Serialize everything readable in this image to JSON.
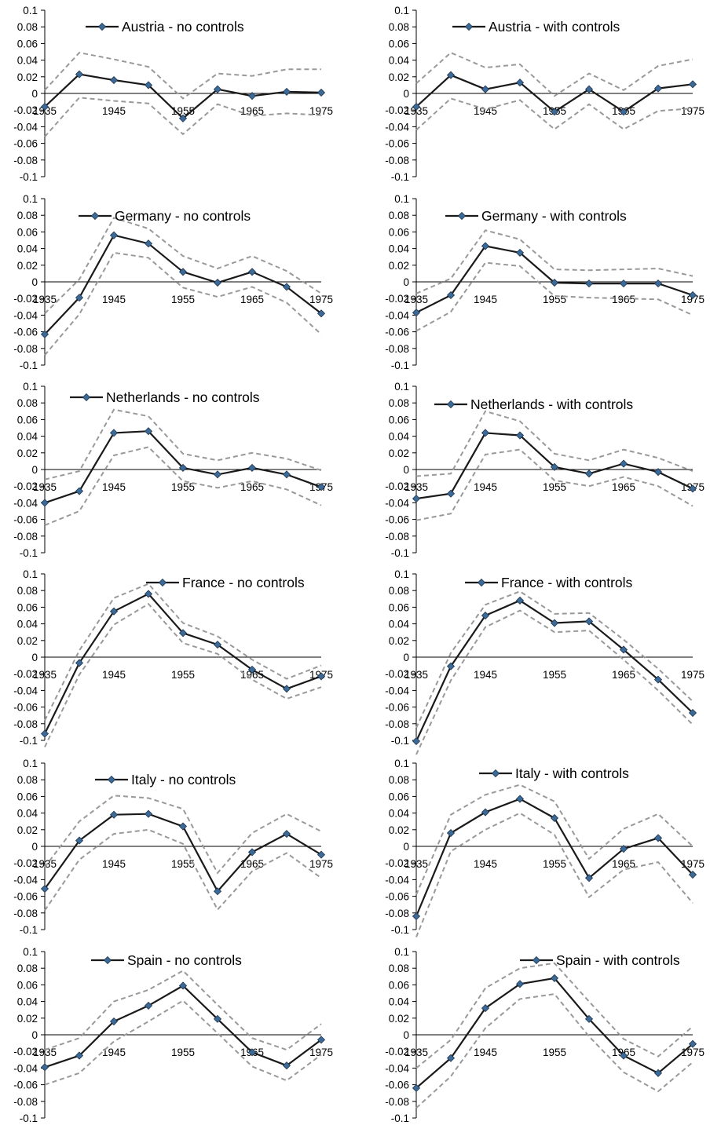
{
  "chart_data": [
    {
      "type": "line",
      "legend": "Austria - no controls",
      "x": [
        1935,
        1940,
        1945,
        1950,
        1955,
        1960,
        1965,
        1970,
        1975
      ],
      "x_tick_labels": [
        "1935",
        "1945",
        "1955",
        "1965",
        "1975"
      ],
      "y_tick_labels": [
        "0.1",
        "0.08",
        "0.06",
        "0.04",
        "0.02",
        "0",
        "-0.02",
        "-0.04",
        "-0.06",
        "-0.08",
        "-0.1"
      ],
      "ylim": [
        -0.1,
        0.1
      ],
      "values": [
        -0.016,
        0.023,
        0.016,
        0.01,
        -0.03,
        0.005,
        -0.003,
        0.002,
        0.001
      ],
      "upper": [
        0.004,
        0.049,
        0.041,
        0.032,
        -0.006,
        0.024,
        0.021,
        0.029,
        0.029
      ],
      "lower": [
        -0.052,
        -0.005,
        -0.009,
        -0.012,
        -0.049,
        -0.013,
        -0.027,
        -0.024,
        -0.026
      ],
      "colors": {
        "line": "#1a1a1a",
        "marker": "#3c6a96",
        "band": "#999999"
      }
    },
    {
      "type": "line",
      "legend": "Austria - with controls",
      "x": [
        1935,
        1940,
        1945,
        1950,
        1955,
        1960,
        1965,
        1970,
        1975
      ],
      "x_tick_labels": [
        "1935",
        "1945",
        "1955",
        "1965",
        "1975"
      ],
      "y_tick_labels": [
        "0.1",
        "0.08",
        "0.06",
        "0.04",
        "0.02",
        "0",
        "-0.02",
        "-0.04",
        "-0.06",
        "-0.08",
        "-0.1"
      ],
      "ylim": [
        -0.1,
        0.1
      ],
      "values": [
        -0.016,
        0.022,
        0.005,
        0.013,
        -0.022,
        0.005,
        -0.022,
        0.006,
        0.011
      ],
      "upper": [
        0.012,
        0.049,
        0.031,
        0.035,
        -0.003,
        0.024,
        0.004,
        0.033,
        0.041
      ],
      "lower": [
        -0.044,
        -0.006,
        -0.019,
        -0.008,
        -0.043,
        -0.013,
        -0.043,
        -0.021,
        -0.018
      ],
      "colors": {
        "line": "#1a1a1a",
        "marker": "#3c6a96",
        "band": "#999999"
      }
    },
    {
      "type": "line",
      "legend": "Germany - no controls",
      "x": [
        1935,
        1940,
        1945,
        1950,
        1955,
        1960,
        1965,
        1970,
        1975
      ],
      "x_tick_labels": [
        "1935",
        "1945",
        "1955",
        "1965",
        "1975"
      ],
      "y_tick_labels": [
        "0.1",
        "0.08",
        "0.06",
        "0.04",
        "0.02",
        "0",
        "-0.02",
        "-0.04",
        "-0.06",
        "-0.08",
        "-0.1"
      ],
      "ylim": [
        -0.1,
        0.1
      ],
      "values": [
        -0.063,
        -0.019,
        0.056,
        0.046,
        0.012,
        -0.001,
        0.012,
        -0.006,
        -0.038
      ],
      "upper": [
        -0.038,
        0.003,
        0.077,
        0.064,
        0.031,
        0.016,
        0.031,
        0.013,
        -0.014
      ],
      "lower": [
        -0.088,
        -0.039,
        0.035,
        0.029,
        -0.007,
        -0.018,
        -0.006,
        -0.025,
        -0.063
      ],
      "colors": {
        "line": "#1a1a1a",
        "marker": "#3c6a96",
        "band": "#999999"
      }
    },
    {
      "type": "line",
      "legend": "Germany - with controls",
      "x": [
        1935,
        1940,
        1945,
        1950,
        1955,
        1960,
        1965,
        1970,
        1975
      ],
      "x_tick_labels": [
        "1935",
        "1945",
        "1955",
        "1965",
        "1975"
      ],
      "y_tick_labels": [
        "0.1",
        "0.08",
        "0.06",
        "0.04",
        "0.02",
        "0",
        "-0.02",
        "-0.04",
        "-0.06",
        "-0.08",
        "-0.1"
      ],
      "ylim": [
        -0.1,
        0.1
      ],
      "values": [
        -0.037,
        -0.016,
        0.043,
        0.035,
        -0.001,
        -0.002,
        -0.002,
        -0.002,
        -0.016
      ],
      "upper": [
        -0.014,
        0.004,
        0.062,
        0.051,
        0.015,
        0.014,
        0.015,
        0.016,
        0.007
      ],
      "lower": [
        -0.059,
        -0.036,
        0.023,
        0.019,
        -0.017,
        -0.019,
        -0.02,
        -0.021,
        -0.04
      ],
      "colors": {
        "line": "#1a1a1a",
        "marker": "#3c6a96",
        "band": "#999999"
      }
    },
    {
      "type": "line",
      "legend": "Netherlands - no controls",
      "x": [
        1935,
        1940,
        1945,
        1950,
        1955,
        1960,
        1965,
        1970,
        1975
      ],
      "x_tick_labels": [
        "1935",
        "1945",
        "1955",
        "1965",
        "1975"
      ],
      "y_tick_labels": [
        "0.1",
        "0.08",
        "0.06",
        "0.04",
        "0.02",
        "0",
        "-0.02",
        "-0.04",
        "-0.06",
        "-0.08",
        "-0.1"
      ],
      "ylim": [
        -0.1,
        0.1
      ],
      "values": [
        -0.04,
        -0.026,
        0.044,
        0.046,
        0.002,
        -0.006,
        0.002,
        -0.006,
        -0.021
      ],
      "upper": [
        -0.012,
        -0.002,
        0.072,
        0.064,
        0.019,
        0.011,
        0.02,
        0.013,
        -0.001
      ],
      "lower": [
        -0.067,
        -0.05,
        0.017,
        0.027,
        -0.014,
        -0.022,
        -0.014,
        -0.024,
        -0.043
      ],
      "colors": {
        "line": "#1a1a1a",
        "marker": "#3c6a96",
        "band": "#999999"
      }
    },
    {
      "type": "line",
      "legend": "Netherlands - with controls",
      "x": [
        1935,
        1940,
        1945,
        1950,
        1955,
        1960,
        1965,
        1970,
        1975
      ],
      "x_tick_labels": [
        "1935",
        "1945",
        "1955",
        "1965",
        "1975"
      ],
      "y_tick_labels": [
        "0.1",
        "0.08",
        "0.06",
        "0.04",
        "0.02",
        "0",
        "-0.02",
        "-0.04",
        "-0.06",
        "-0.08",
        "-0.1"
      ],
      "ylim": [
        -0.1,
        0.1
      ],
      "values": [
        -0.035,
        -0.029,
        0.044,
        0.041,
        0.003,
        -0.005,
        0.007,
        -0.003,
        -0.023
      ],
      "upper": [
        -0.008,
        -0.005,
        0.07,
        0.058,
        0.019,
        0.011,
        0.024,
        0.014,
        -0.002
      ],
      "lower": [
        -0.061,
        -0.053,
        0.018,
        0.024,
        -0.013,
        -0.02,
        -0.009,
        -0.02,
        -0.044
      ],
      "colors": {
        "line": "#1a1a1a",
        "marker": "#3c6a96",
        "band": "#999999"
      }
    },
    {
      "type": "line",
      "legend": "France - no controls",
      "x": [
        1935,
        1940,
        1945,
        1950,
        1955,
        1960,
        1965,
        1970,
        1975
      ],
      "x_tick_labels": [
        "1935",
        "1945",
        "1955",
        "1965",
        "1975"
      ],
      "y_tick_labels": [
        "0.1",
        "0.08",
        "0.06",
        "0.04",
        "0.02",
        "0",
        "-0.02",
        "-0.04",
        "-0.06",
        "-0.08",
        "-0.1"
      ],
      "ylim": [
        -0.1,
        0.1
      ],
      "values": [
        -0.092,
        -0.007,
        0.055,
        0.076,
        0.029,
        0.015,
        -0.015,
        -0.038,
        -0.023
      ],
      "upper": [
        -0.076,
        0.008,
        0.071,
        0.088,
        0.041,
        0.025,
        -0.003,
        -0.026,
        -0.01
      ],
      "lower": [
        -0.108,
        -0.021,
        0.039,
        0.064,
        0.017,
        0.004,
        -0.027,
        -0.05,
        -0.036
      ],
      "colors": {
        "line": "#1a1a1a",
        "marker": "#3c6a96",
        "band": "#999999"
      }
    },
    {
      "type": "line",
      "legend": "France - with controls",
      "x": [
        1935,
        1940,
        1945,
        1950,
        1955,
        1960,
        1965,
        1970,
        1975
      ],
      "x_tick_labels": [
        "1935",
        "1945",
        "1955",
        "1965",
        "1975"
      ],
      "y_tick_labels": [
        "0.1",
        "0.08",
        "0.06",
        "0.04",
        "0.02",
        "0",
        "-0.02",
        "-0.04",
        "-0.06",
        "-0.08",
        "-0.1"
      ],
      "ylim": [
        -0.1,
        0.1
      ],
      "values": [
        -0.101,
        -0.011,
        0.05,
        0.068,
        0.041,
        0.043,
        0.009,
        -0.027,
        -0.067
      ],
      "upper": [
        -0.085,
        0.005,
        0.063,
        0.079,
        0.052,
        0.053,
        0.021,
        -0.014,
        -0.053
      ],
      "lower": [
        -0.117,
        -0.028,
        0.036,
        0.056,
        0.03,
        0.032,
        -0.003,
        -0.04,
        -0.081
      ],
      "colors": {
        "line": "#1a1a1a",
        "marker": "#3c6a96",
        "band": "#999999"
      }
    },
    {
      "type": "line",
      "legend": "Italy - no controls",
      "x": [
        1935,
        1940,
        1945,
        1950,
        1955,
        1960,
        1965,
        1970,
        1975
      ],
      "x_tick_labels": [
        "1935",
        "1945",
        "1955",
        "1965",
        "1975"
      ],
      "y_tick_labels": [
        "0.1",
        "0.08",
        "0.06",
        "0.04",
        "0.02",
        "0",
        "-0.02",
        "-0.04",
        "-0.06",
        "-0.08",
        "-0.1"
      ],
      "ylim": [
        -0.1,
        0.1
      ],
      "values": [
        -0.051,
        0.007,
        0.038,
        0.039,
        0.024,
        -0.054,
        -0.007,
        0.015,
        -0.01
      ],
      "upper": [
        -0.025,
        0.03,
        0.061,
        0.058,
        0.045,
        -0.032,
        0.016,
        0.039,
        0.018
      ],
      "lower": [
        -0.077,
        -0.016,
        0.015,
        0.02,
        0.003,
        -0.076,
        -0.03,
        -0.008,
        -0.038
      ],
      "colors": {
        "line": "#1a1a1a",
        "marker": "#3c6a96",
        "band": "#999999"
      }
    },
    {
      "type": "line",
      "legend": "Italy - with controls",
      "x": [
        1935,
        1940,
        1945,
        1950,
        1955,
        1960,
        1965,
        1970,
        1975
      ],
      "x_tick_labels": [
        "1935",
        "1945",
        "1955",
        "1965",
        "1975"
      ],
      "y_tick_labels": [
        "0.1",
        "0.08",
        "0.06",
        "0.04",
        "0.02",
        "0",
        "-0.02",
        "-0.04",
        "-0.06",
        "-0.08",
        "-0.1"
      ],
      "ylim": [
        -0.1,
        0.1
      ],
      "values": [
        -0.084,
        0.016,
        0.041,
        0.057,
        0.034,
        -0.038,
        -0.003,
        0.01,
        -0.034
      ],
      "upper": [
        -0.058,
        0.038,
        0.062,
        0.074,
        0.054,
        -0.015,
        0.021,
        0.039,
        0.0
      ],
      "lower": [
        -0.109,
        -0.006,
        0.02,
        0.04,
        0.014,
        -0.061,
        -0.028,
        -0.019,
        -0.068
      ],
      "colors": {
        "line": "#1a1a1a",
        "marker": "#3c6a96",
        "band": "#999999"
      }
    },
    {
      "type": "line",
      "legend": "Spain - no controls",
      "x": [
        1935,
        1940,
        1945,
        1950,
        1955,
        1960,
        1965,
        1970,
        1975
      ],
      "x_tick_labels": [
        "1935",
        "1945",
        "1955",
        "1965",
        "1975"
      ],
      "y_tick_labels": [
        "0.1",
        "0.08",
        "0.06",
        "0.04",
        "0.02",
        "0",
        "-0.02",
        "-0.04",
        "-0.06",
        "-0.08",
        "-0.1"
      ],
      "ylim": [
        -0.1,
        0.1
      ],
      "values": [
        -0.039,
        -0.025,
        0.016,
        0.035,
        0.059,
        0.019,
        -0.021,
        -0.037,
        -0.006
      ],
      "upper": [
        -0.018,
        -0.004,
        0.04,
        0.054,
        0.077,
        0.036,
        -0.004,
        -0.018,
        0.013
      ],
      "lower": [
        -0.06,
        -0.046,
        -0.008,
        0.016,
        0.041,
        0.002,
        -0.038,
        -0.055,
        -0.024
      ],
      "colors": {
        "line": "#1a1a1a",
        "marker": "#3c6a96",
        "band": "#999999"
      }
    },
    {
      "type": "line",
      "legend": "Spain - with controls",
      "x": [
        1935,
        1940,
        1945,
        1950,
        1955,
        1960,
        1965,
        1970,
        1975
      ],
      "x_tick_labels": [
        "1935",
        "1945",
        "1955",
        "1965",
        "1975"
      ],
      "y_tick_labels": [
        "0.1",
        "0.08",
        "0.06",
        "0.04",
        "0.02",
        "0",
        "-0.02",
        "-0.04",
        "-0.06",
        "-0.08",
        "-0.1"
      ],
      "ylim": [
        -0.1,
        0.1
      ],
      "values": [
        -0.064,
        -0.028,
        0.032,
        0.061,
        0.068,
        0.019,
        -0.025,
        -0.046,
        -0.011
      ],
      "upper": [
        -0.04,
        -0.006,
        0.056,
        0.08,
        0.086,
        0.04,
        -0.005,
        -0.026,
        0.01
      ],
      "lower": [
        -0.088,
        -0.05,
        0.008,
        0.043,
        0.049,
        -0.002,
        -0.045,
        -0.068,
        -0.033
      ],
      "colors": {
        "line": "#1a1a1a",
        "marker": "#3c6a96",
        "band": "#999999"
      }
    }
  ]
}
